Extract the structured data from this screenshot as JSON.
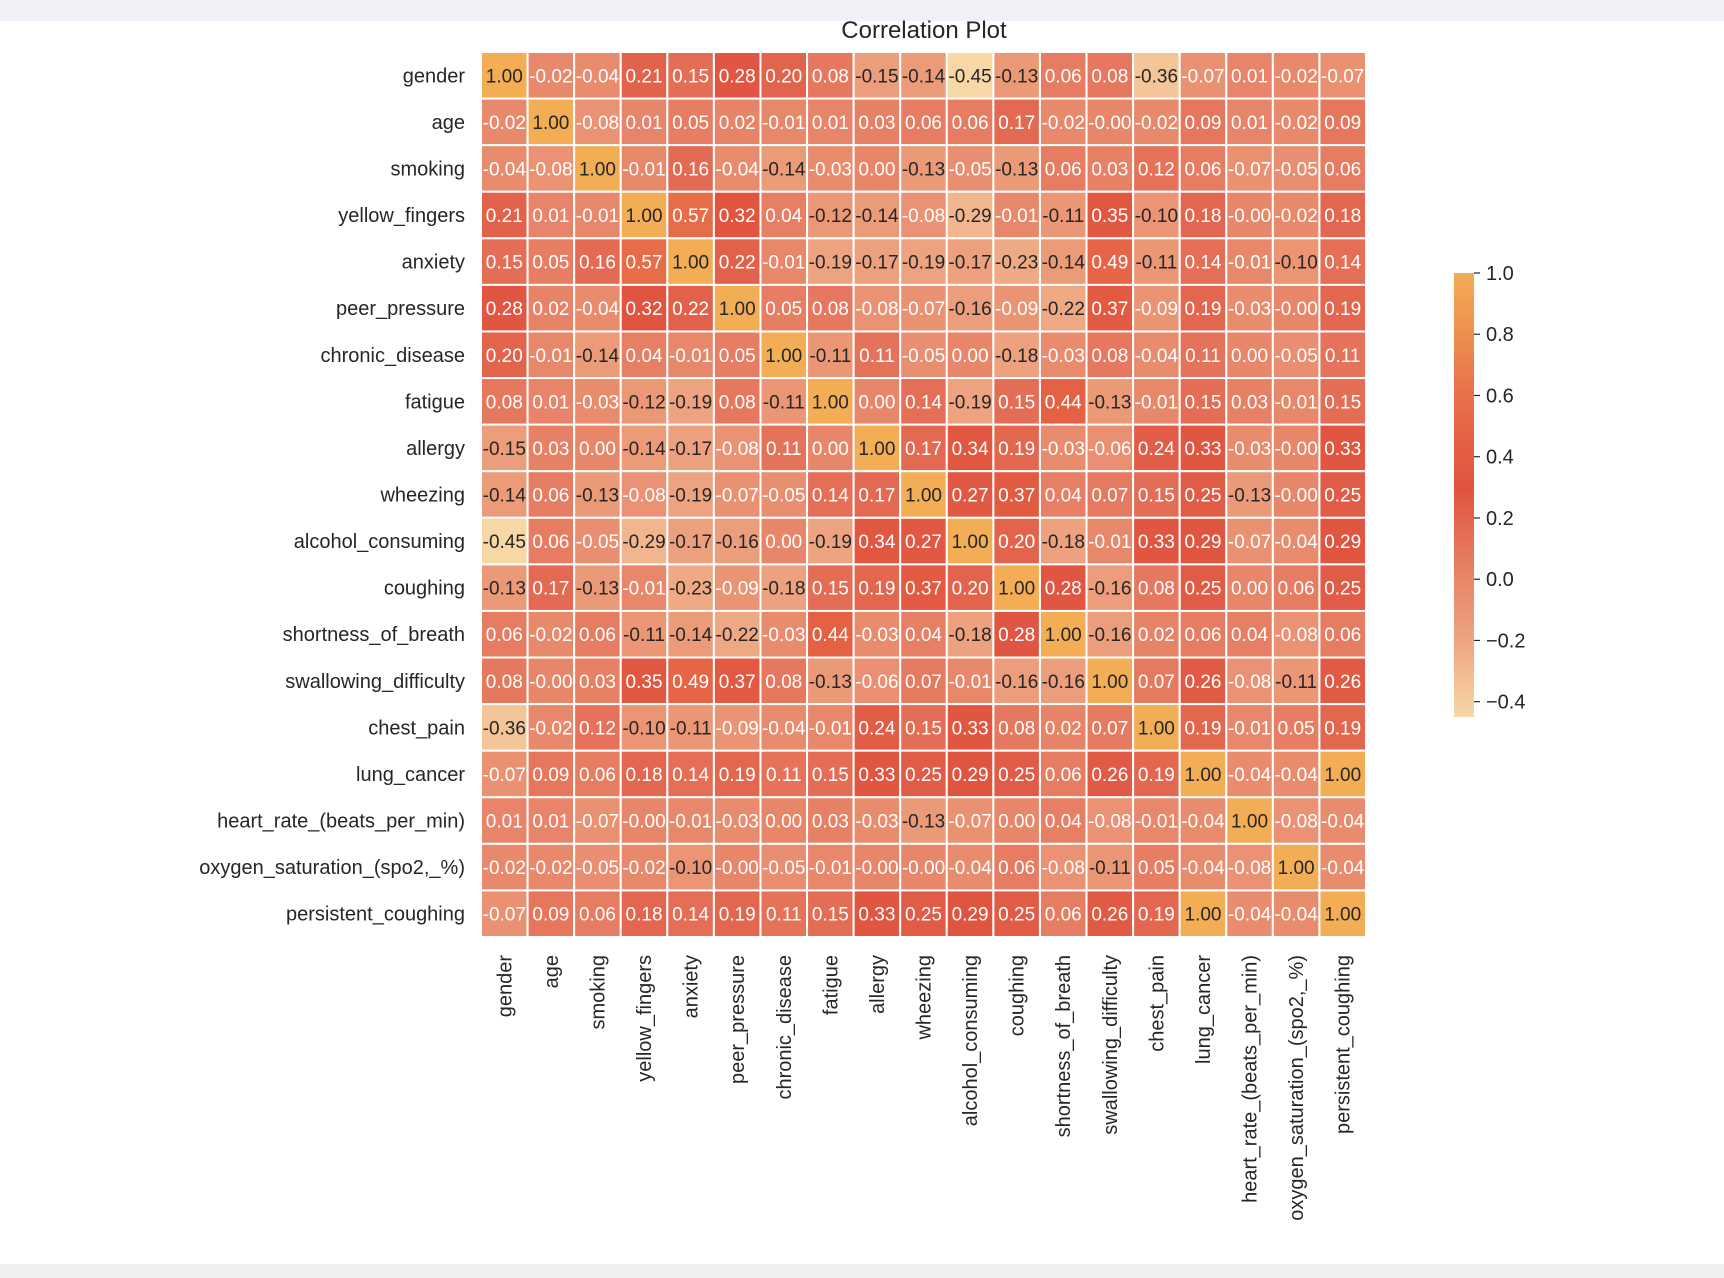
{
  "chart_data": {
    "type": "heatmap",
    "title": "Correlation Plot",
    "xlabel": "",
    "ylabel": "",
    "labels": [
      "gender",
      "age",
      "smoking",
      "yellow_fingers",
      "anxiety",
      "peer_pressure",
      "chronic_disease",
      "fatigue",
      "allergy",
      "wheezing",
      "alcohol_consuming",
      "coughing",
      "shortness_of_breath",
      "swallowing_difficulty",
      "chest_pain",
      "lung_cancer",
      "heart_rate_(beats_per_min)",
      "oxygen_saturation_(spo2,_%)",
      "persistent_coughing"
    ],
    "matrix": [
      [
        "1.00",
        "-0.02",
        "-0.04",
        "0.21",
        "0.15",
        "0.28",
        "0.20",
        "0.08",
        "-0.15",
        "-0.14",
        "-0.45",
        "-0.13",
        "0.06",
        "0.08",
        "-0.36",
        "-0.07",
        "0.01",
        "-0.02",
        "-0.07"
      ],
      [
        "-0.02",
        "1.00",
        "-0.08",
        "0.01",
        "0.05",
        "0.02",
        "-0.01",
        "0.01",
        "0.03",
        "0.06",
        "0.06",
        "0.17",
        "-0.02",
        "-0.00",
        "-0.02",
        "0.09",
        "0.01",
        "-0.02",
        "0.09"
      ],
      [
        "-0.04",
        "-0.08",
        "1.00",
        "-0.01",
        "0.16",
        "-0.04",
        "-0.14",
        "-0.03",
        "0.00",
        "-0.13",
        "-0.05",
        "-0.13",
        "0.06",
        "0.03",
        "0.12",
        "0.06",
        "-0.07",
        "-0.05",
        "0.06"
      ],
      [
        "0.21",
        "0.01",
        "-0.01",
        "1.00",
        "0.57",
        "0.32",
        "0.04",
        "-0.12",
        "-0.14",
        "-0.08",
        "-0.29",
        "-0.01",
        "-0.11",
        "0.35",
        "-0.10",
        "0.18",
        "-0.00",
        "-0.02",
        "0.18"
      ],
      [
        "0.15",
        "0.05",
        "0.16",
        "0.57",
        "1.00",
        "0.22",
        "-0.01",
        "-0.19",
        "-0.17",
        "-0.19",
        "-0.17",
        "-0.23",
        "-0.14",
        "0.49",
        "-0.11",
        "0.14",
        "-0.01",
        "-0.10",
        "0.14"
      ],
      [
        "0.28",
        "0.02",
        "-0.04",
        "0.32",
        "0.22",
        "1.00",
        "0.05",
        "0.08",
        "-0.08",
        "-0.07",
        "-0.16",
        "-0.09",
        "-0.22",
        "0.37",
        "-0.09",
        "0.19",
        "-0.03",
        "-0.00",
        "0.19"
      ],
      [
        "0.20",
        "-0.01",
        "-0.14",
        "0.04",
        "-0.01",
        "0.05",
        "1.00",
        "-0.11",
        "0.11",
        "-0.05",
        "0.00",
        "-0.18",
        "-0.03",
        "0.08",
        "-0.04",
        "0.11",
        "0.00",
        "-0.05",
        "0.11"
      ],
      [
        "0.08",
        "0.01",
        "-0.03",
        "-0.12",
        "-0.19",
        "0.08",
        "-0.11",
        "1.00",
        "0.00",
        "0.14",
        "-0.19",
        "0.15",
        "0.44",
        "-0.13",
        "-0.01",
        "0.15",
        "0.03",
        "-0.01",
        "0.15"
      ],
      [
        "-0.15",
        "0.03",
        "0.00",
        "-0.14",
        "-0.17",
        "-0.08",
        "0.11",
        "0.00",
        "1.00",
        "0.17",
        "0.34",
        "0.19",
        "-0.03",
        "-0.06",
        "0.24",
        "0.33",
        "-0.03",
        "-0.00",
        "0.33"
      ],
      [
        "-0.14",
        "0.06",
        "-0.13",
        "-0.08",
        "-0.19",
        "-0.07",
        "-0.05",
        "0.14",
        "0.17",
        "1.00",
        "0.27",
        "0.37",
        "0.04",
        "0.07",
        "0.15",
        "0.25",
        "-0.13",
        "-0.00",
        "0.25"
      ],
      [
        "-0.45",
        "0.06",
        "-0.05",
        "-0.29",
        "-0.17",
        "-0.16",
        "0.00",
        "-0.19",
        "0.34",
        "0.27",
        "1.00",
        "0.20",
        "-0.18",
        "-0.01",
        "0.33",
        "0.29",
        "-0.07",
        "-0.04",
        "0.29"
      ],
      [
        "-0.13",
        "0.17",
        "-0.13",
        "-0.01",
        "-0.23",
        "-0.09",
        "-0.18",
        "0.15",
        "0.19",
        "0.37",
        "0.20",
        "1.00",
        "0.28",
        "-0.16",
        "0.08",
        "0.25",
        "0.00",
        "0.06",
        "0.25"
      ],
      [
        "0.06",
        "-0.02",
        "0.06",
        "-0.11",
        "-0.14",
        "-0.22",
        "-0.03",
        "0.44",
        "-0.03",
        "0.04",
        "-0.18",
        "0.28",
        "1.00",
        "-0.16",
        "0.02",
        "0.06",
        "0.04",
        "-0.08",
        "0.06"
      ],
      [
        "0.08",
        "-0.00",
        "0.03",
        "0.35",
        "0.49",
        "0.37",
        "0.08",
        "-0.13",
        "-0.06",
        "0.07",
        "-0.01",
        "-0.16",
        "-0.16",
        "1.00",
        "0.07",
        "0.26",
        "-0.08",
        "-0.11",
        "0.26"
      ],
      [
        "-0.36",
        "-0.02",
        "0.12",
        "-0.10",
        "-0.11",
        "-0.09",
        "-0.04",
        "-0.01",
        "0.24",
        "0.15",
        "0.33",
        "0.08",
        "0.02",
        "0.07",
        "1.00",
        "0.19",
        "-0.01",
        "0.05",
        "0.19"
      ],
      [
        "-0.07",
        "0.09",
        "0.06",
        "0.18",
        "0.14",
        "0.19",
        "0.11",
        "0.15",
        "0.33",
        "0.25",
        "0.29",
        "0.25",
        "0.06",
        "0.26",
        "0.19",
        "1.00",
        "-0.04",
        "-0.04",
        "1.00"
      ],
      [
        "0.01",
        "0.01",
        "-0.07",
        "-0.00",
        "-0.01",
        "-0.03",
        "0.00",
        "0.03",
        "-0.03",
        "-0.13",
        "-0.07",
        "0.00",
        "0.04",
        "-0.08",
        "-0.01",
        "-0.04",
        "1.00",
        "-0.08",
        "-0.04"
      ],
      [
        "-0.02",
        "-0.02",
        "-0.05",
        "-0.02",
        "-0.10",
        "-0.00",
        "-0.05",
        "-0.01",
        "-0.00",
        "-0.00",
        "-0.04",
        "0.06",
        "-0.08",
        "-0.11",
        "0.05",
        "-0.04",
        "-0.08",
        "1.00",
        "-0.04"
      ],
      [
        "-0.07",
        "0.09",
        "0.06",
        "0.18",
        "0.14",
        "0.19",
        "0.11",
        "0.15",
        "0.33",
        "0.25",
        "0.29",
        "0.25",
        "0.06",
        "0.26",
        "0.19",
        "1.00",
        "-0.04",
        "-0.04",
        "1.00"
      ]
    ],
    "annotations": true,
    "value_format": "0.00",
    "colorbar": {
      "range": [
        -0.45,
        1.0
      ],
      "ticks": [
        "1.0",
        "0.8",
        "0.6",
        "0.4",
        "0.2",
        "0.0",
        "−0.2",
        "−0.4"
      ],
      "tick_values": [
        1.0,
        0.8,
        0.6,
        0.4,
        0.2,
        0.0,
        -0.2,
        -0.4
      ],
      "placement": "right"
    },
    "colormap": {
      "stops": [
        {
          "value": -0.45,
          "color": "#f7d7a5"
        },
        {
          "value": -0.2,
          "color": "#eda480"
        },
        {
          "value": 0.0,
          "color": "#e8866a"
        },
        {
          "value": 0.3,
          "color": "#e0533f"
        },
        {
          "value": 0.6,
          "color": "#e8704a"
        },
        {
          "value": 1.0,
          "color": "#f2ad55"
        }
      ],
      "cell_border": "#ffffff",
      "dark_text": "#262626",
      "light_text": "#ffffff"
    }
  }
}
